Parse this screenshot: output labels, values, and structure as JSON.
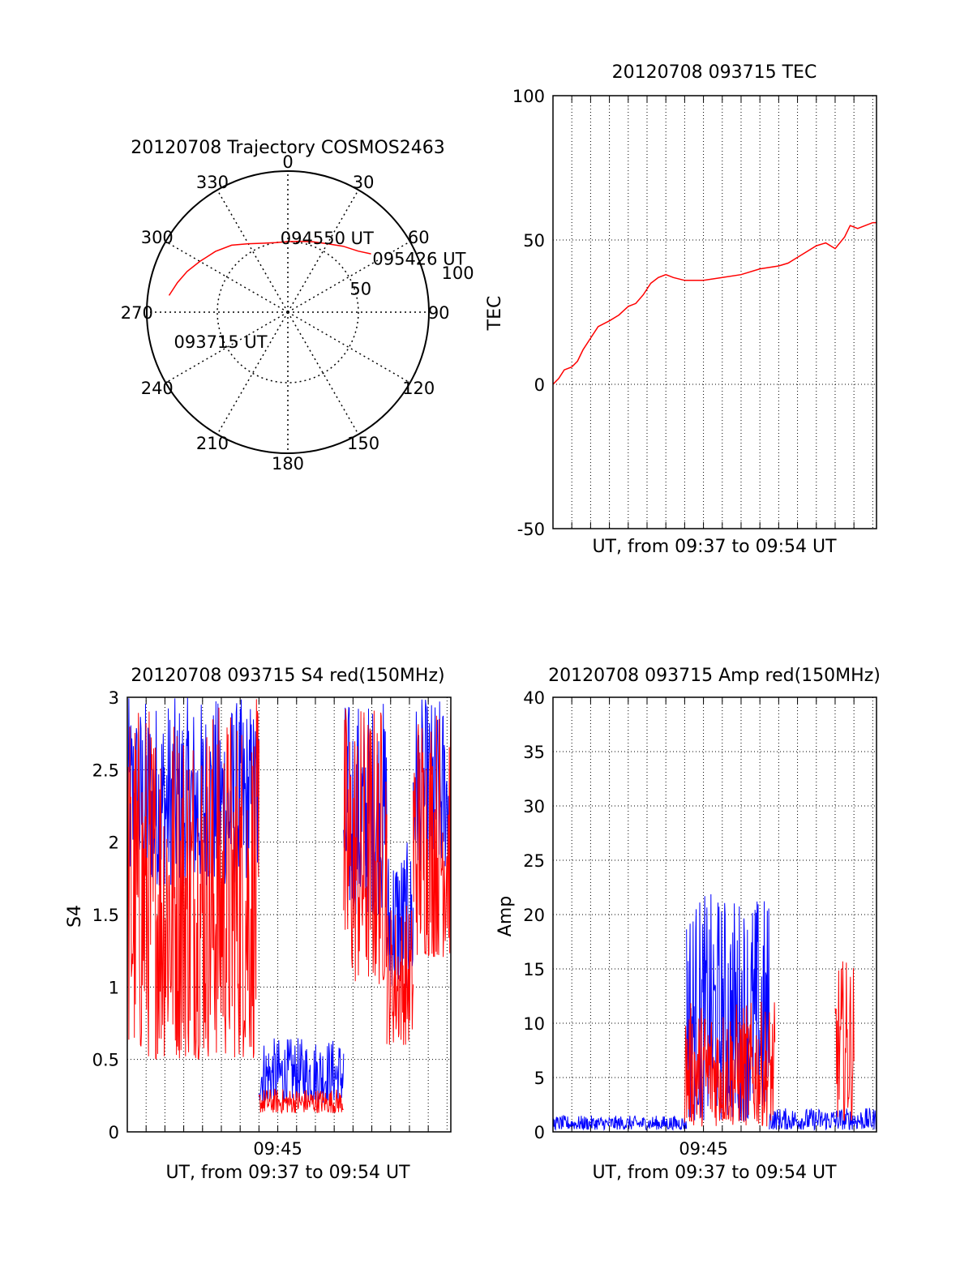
{
  "chart_data": [
    {
      "type": "polar",
      "title": "20120708 Trajectory COSMOS2463",
      "angle_ticks": [
        "0",
        "30",
        "60",
        "90",
        "120",
        "150",
        "180",
        "210",
        "240",
        "270",
        "300",
        "330"
      ],
      "radius_ticks": [
        "50",
        "100"
      ],
      "rmax": 100,
      "trajectory": {
        "color": "#ff0000",
        "points": [
          [
            278,
            85
          ],
          [
            285,
            81
          ],
          [
            292,
            77
          ],
          [
            300,
            72
          ],
          [
            310,
            67
          ],
          [
            320,
            62
          ],
          [
            330,
            56
          ],
          [
            340,
            52
          ],
          [
            350,
            50
          ],
          [
            0,
            50
          ],
          [
            10,
            51
          ],
          [
            20,
            53
          ],
          [
            30,
            56
          ],
          [
            40,
            61
          ],
          [
            49,
            66
          ],
          [
            55,
            72
          ]
        ]
      },
      "annotations": [
        {
          "text": "093715 UT",
          "az": 255,
          "r": 80
        },
        {
          "text": "094550 UT",
          "az": 358,
          "r": 53
        },
        {
          "text": "095426 UT",
          "az": 59,
          "r": 74
        }
      ]
    },
    {
      "type": "line",
      "title": "20120708 093715 TEC",
      "xlabel": "UT, from 09:37 to 09:54 UT",
      "ylabel": "TEC",
      "xlim": [
        0,
        17.2
      ],
      "ylim": [
        -50,
        100
      ],
      "yticks": [
        "-50",
        "0",
        "50",
        "100"
      ],
      "grid": true,
      "series": [
        {
          "color": "#ff0000",
          "x": [
            0,
            0.3,
            0.6,
            1.0,
            1.3,
            1.6,
            2.0,
            2.4,
            3.0,
            3.5,
            4.0,
            4.4,
            4.8,
            5.2,
            5.6,
            6.0,
            6.4,
            7.0,
            8.0,
            9.0,
            10.0,
            11.0,
            12.0,
            12.5,
            13.0,
            13.5,
            14.0,
            14.5,
            15.0,
            15.5,
            15.8,
            16.2,
            16.6,
            17.0,
            17.2
          ],
          "y": [
            0,
            2,
            5,
            6,
            8,
            12,
            16,
            20,
            22,
            24,
            27,
            28,
            31,
            35,
            37,
            38,
            37,
            36,
            36,
            37,
            38,
            40,
            41,
            42,
            44,
            46,
            48,
            49,
            47,
            51,
            55,
            54,
            55,
            56,
            56
          ]
        }
      ]
    },
    {
      "type": "line",
      "title": "20120708 093715 S4 red(150MHz)",
      "xlabel": "UT, from 09:37 to 09:54 UT",
      "ylabel": "S4",
      "xlim": [
        0,
        17.2
      ],
      "ylim": [
        0,
        3
      ],
      "xticks": [
        {
          "x": 8,
          "label": "09:45"
        }
      ],
      "yticks": [
        "0",
        "0.5",
        "1",
        "1.5",
        "2",
        "2.5",
        "3"
      ],
      "grid": true,
      "series": [
        {
          "color": "#0000ff",
          "segments": [
            {
              "x0": 0,
              "x1": 7.0,
              "lo": 1.7,
              "hi": 3.0
            },
            {
              "x0": 7.0,
              "x1": 11.5,
              "lo": 0.2,
              "hi": 0.65
            },
            {
              "x0": 11.5,
              "x1": 13.8,
              "lo": 1.5,
              "hi": 3.0
            },
            {
              "x0": 13.8,
              "x1": 15.2,
              "lo": 1.0,
              "hi": 2.0
            },
            {
              "x0": 15.2,
              "x1": 17.2,
              "lo": 1.8,
              "hi": 3.0
            }
          ]
        },
        {
          "color": "#ff0000",
          "segments": [
            {
              "x0": 0,
              "x1": 7.0,
              "lo": 0.5,
              "hi": 3.0
            },
            {
              "x0": 7.0,
              "x1": 11.5,
              "lo": 0.13,
              "hi": 0.3
            },
            {
              "x0": 11.5,
              "x1": 13.8,
              "lo": 1.0,
              "hi": 3.0
            },
            {
              "x0": 13.8,
              "x1": 15.2,
              "lo": 0.6,
              "hi": 1.6
            },
            {
              "x0": 15.2,
              "x1": 17.2,
              "lo": 1.2,
              "hi": 3.0
            }
          ]
        }
      ]
    },
    {
      "type": "line",
      "title": "20120708 093715 Amp red(150MHz)",
      "xlabel": "UT, from 09:37 to 09:54 UT",
      "ylabel": "Amp",
      "xlim": [
        0,
        17.2
      ],
      "ylim": [
        0,
        40
      ],
      "xticks": [
        {
          "x": 8,
          "label": "09:45"
        }
      ],
      "yticks": [
        "0",
        "5",
        "10",
        "15",
        "20",
        "25",
        "30",
        "35",
        "40"
      ],
      "grid": true,
      "series": [
        {
          "color": "#0000ff",
          "segments": [
            {
              "x0": 0,
              "x1": 7.1,
              "lo": 0.2,
              "hi": 1.5
            },
            {
              "x0": 7.1,
              "x1": 11.5,
              "lo": 1.0,
              "hi": 22.0
            },
            {
              "x0": 11.5,
              "x1": 17.2,
              "lo": 0.2,
              "hi": 2.2
            }
          ]
        },
        {
          "color": "#ff0000",
          "segments": [
            {
              "x0": 7.0,
              "x1": 11.8,
              "lo": 0.5,
              "hi": 12.0
            },
            {
              "x0": 15.0,
              "x1": 16.0,
              "lo": 1.0,
              "hi": 16.0
            }
          ]
        }
      ]
    }
  ]
}
